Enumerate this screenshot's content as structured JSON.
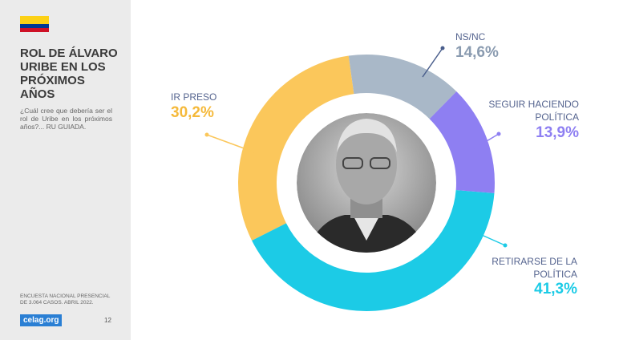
{
  "chart_data": {
    "type": "donut",
    "title": "ROL DE ÁLVARO URIBE EN LOS PRÓXIMOS AÑOS",
    "subtitle": "¿Cuál cree que debería ser el rol de Uribe en los próximos años?... RU GUIADA.",
    "note": "ENCUESTA NACIONAL PRESENCIAL DE 3.064 CASOS. ABRIL 2022.",
    "categories": [
      "NS/NC",
      "SEGUIR HACIENDO POLÍTICA",
      "RETIRARSE DE LA POLÍTICA",
      "IR PRESO"
    ],
    "values": [
      14.6,
      13.9,
      41.3,
      30.2
    ],
    "value_labels": [
      "14,6%",
      "13,9%",
      "41,3%",
      "30,2%"
    ],
    "colors": [
      "#a9b8c8",
      "#8e7ff2",
      "#1ccbe6",
      "#fbc75b"
    ]
  },
  "page": {
    "logo": "celag.org",
    "page_number": "12"
  }
}
